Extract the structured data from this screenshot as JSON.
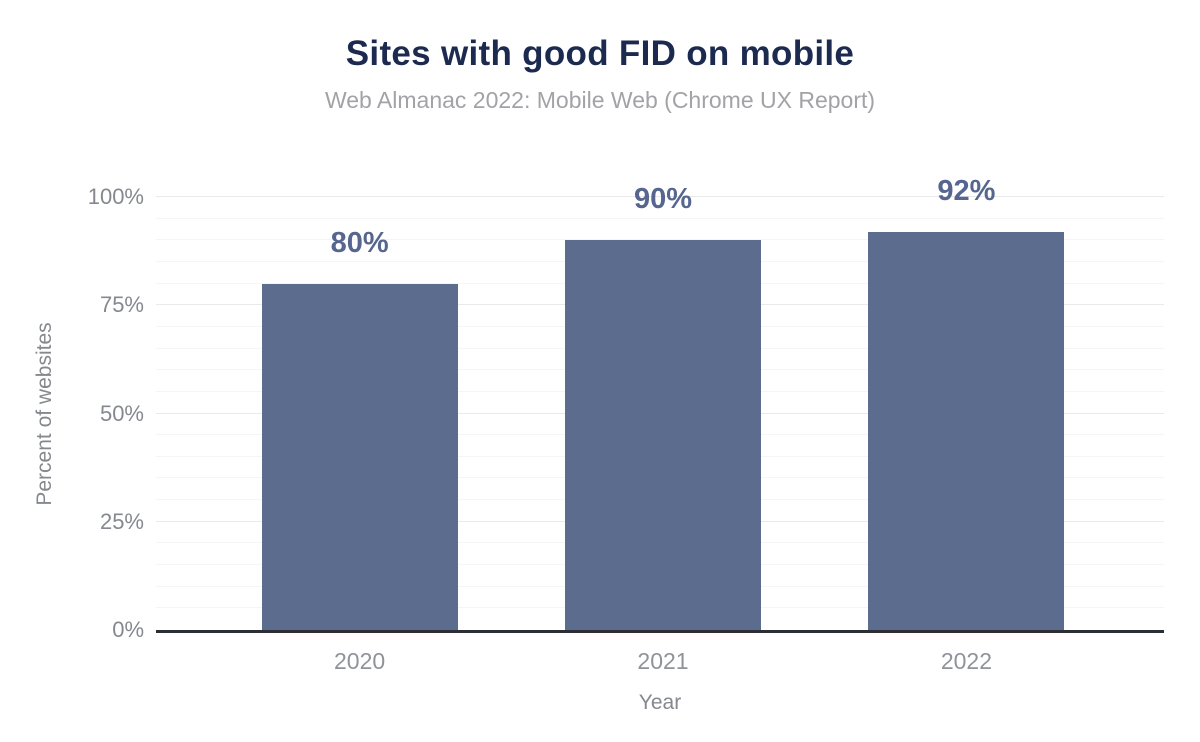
{
  "header": {
    "title": "Sites with good FID on mobile",
    "subtitle": "Web Almanac 2022: Mobile Web (Chrome UX Report)"
  },
  "chart_data": {
    "type": "bar",
    "title": "Sites with good FID on mobile",
    "subtitle": "Web Almanac 2022: Mobile Web (Chrome UX Report)",
    "categories": [
      "2020",
      "2021",
      "2022"
    ],
    "values": [
      80,
      90,
      92
    ],
    "data_labels": [
      "80%",
      "90%",
      "92%"
    ],
    "xlabel": "Year",
    "ylabel": "Percent of websites",
    "ylim": [
      0,
      100
    ],
    "yticks": [
      0,
      25,
      50,
      75,
      100
    ],
    "ytick_labels": [
      "0%",
      "25%",
      "50%",
      "75%",
      "100%"
    ],
    "minor_gridline_step": 5,
    "major_gridline_step": 25,
    "grid": true,
    "legend": "none",
    "colors": {
      "page_bg": "#ffffff",
      "bar": "#5b6c8f",
      "data_label": "#56668f",
      "title": "#1b2a4e",
      "subtitle": "#a3a3a7",
      "axis_tick": "#85898f",
      "x_tick": "#8f939a",
      "axis_title": "#85898f",
      "baseline": "#2b2e33",
      "gridline_major": "#e9e9e9",
      "gridline_minor": "#f5f5f5"
    }
  }
}
